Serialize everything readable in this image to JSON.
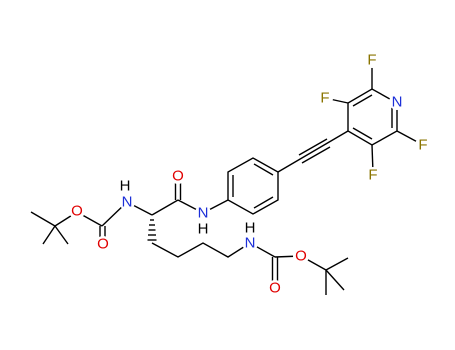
{
  "atoms": [
    "F",
    "F",
    "N",
    "F",
    "F",
    "O",
    "H",
    "N",
    "O",
    "N",
    "H",
    "O",
    "H",
    "N",
    "O",
    "O"
  ]
}
